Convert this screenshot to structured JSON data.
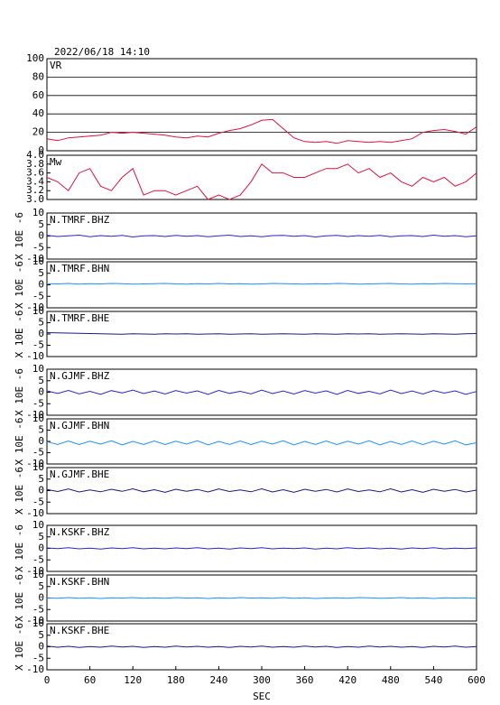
{
  "chart_data": {
    "type": "line",
    "title": "2022/06/18 14:10",
    "xlabel": "SEC",
    "x": [
      0,
      15,
      30,
      45,
      60,
      75,
      90,
      105,
      120,
      135,
      150,
      165,
      180,
      195,
      210,
      225,
      240,
      255,
      270,
      285,
      300,
      315,
      330,
      345,
      360,
      375,
      390,
      405,
      420,
      435,
      450,
      465,
      480,
      495,
      510,
      525,
      540,
      555,
      570,
      585,
      600
    ],
    "xlim": [
      0,
      600
    ],
    "xticks": [
      0,
      60,
      120,
      180,
      240,
      300,
      360,
      420,
      480,
      540,
      600
    ],
    "series": [
      {
        "name": "VR",
        "color": "#dc143c",
        "ylim": [
          0,
          100
        ],
        "yticks": [
          0,
          20,
          40,
          60,
          80,
          100
        ],
        "grid": true,
        "values": [
          13,
          11,
          14,
          15,
          16,
          17,
          20,
          19,
          20,
          19,
          18,
          17,
          15,
          14,
          16,
          15,
          19,
          22,
          24,
          28,
          33,
          34,
          24,
          14,
          10,
          9,
          10,
          8,
          11,
          10,
          9,
          10,
          9,
          11,
          13,
          20,
          22,
          23,
          21,
          18,
          26
        ]
      },
      {
        "name": "Mw",
        "color": "#dc143c",
        "ylim": [
          3,
          4
        ],
        "yticks": [
          {
            "value": 3,
            "label": "3.0"
          },
          3.2,
          3.4,
          3.6,
          3.8,
          {
            "value": 4,
            "label": "4.0"
          }
        ],
        "values": [
          3.5,
          3.4,
          3.2,
          3.6,
          3.7,
          3.3,
          3.2,
          3.5,
          3.7,
          3.1,
          3.2,
          3.2,
          3.1,
          3.2,
          3.3,
          3.0,
          3.1,
          3.0,
          3.1,
          3.4,
          3.8,
          3.6,
          3.6,
          3.5,
          3.5,
          3.6,
          3.7,
          3.7,
          3.8,
          3.6,
          3.7,
          3.5,
          3.6,
          3.4,
          3.3,
          3.5,
          3.4,
          3.5,
          3.3,
          3.4,
          3.6
        ]
      },
      {
        "name": "N.TMRF.BHZ",
        "color": "#2828c8",
        "ylim": [
          -10,
          10
        ],
        "yticks": [
          -10,
          -5,
          0,
          5,
          10
        ],
        "ylabel": "X 10E -6",
        "values": [
          0.3,
          -0.2,
          0.1,
          0.4,
          -0.3,
          0.2,
          -0.1,
          0.3,
          -0.4,
          0.1,
          0.2,
          -0.2,
          0.3,
          -0.1,
          0.2,
          -0.3,
          0.1,
          0.4,
          -0.2,
          0.1,
          -0.3,
          0.2,
          0.3,
          -0.1,
          0.2,
          -0.4,
          0.1,
          0.3,
          -0.2,
          0.2,
          -0.1,
          0.3,
          -0.3,
          0.1,
          0.2,
          -0.2,
          0.4,
          -0.1,
          0.2,
          -0.3,
          0.1
        ]
      },
      {
        "name": "N.TMRF.BHN",
        "color": "#1e90ff",
        "ylim": [
          -10,
          10
        ],
        "yticks": [
          -10,
          -5,
          0,
          5,
          10
        ],
        "ylabel": "X 10E -6",
        "values": [
          0.5,
          0.4,
          0.6,
          0.3,
          0.5,
          0.4,
          0.6,
          0.5,
          0.3,
          0.4,
          0.5,
          0.6,
          0.4,
          0.3,
          0.5,
          0.4,
          0.6,
          0.4,
          0.5,
          0.3,
          0.4,
          0.6,
          0.5,
          0.4,
          0.3,
          0.5,
          0.4,
          0.6,
          0.5,
          0.3,
          0.4,
          0.5,
          0.6,
          0.4,
          0.3,
          0.5,
          0.4,
          0.6,
          0.5,
          0.4,
          0.5
        ]
      },
      {
        "name": "N.TMRF.BHE",
        "color": "#1a1a80",
        "ylim": [
          -10,
          10
        ],
        "yticks": [
          -10,
          -5,
          0,
          5,
          10
        ],
        "ylabel": "X 10E -6",
        "values": [
          0.6,
          0.5,
          0.4,
          0.3,
          0.2,
          0.1,
          0.0,
          -0.1,
          0.1,
          0.0,
          -0.1,
          0.1,
          0.0,
          0.1,
          -0.1,
          0.0,
          0.1,
          -0.1,
          0.0,
          0.1,
          -0.1,
          0.0,
          0.1,
          0.0,
          -0.1,
          0.1,
          0.0,
          -0.1,
          0.1,
          0.0,
          0.1,
          -0.1,
          0.0,
          0.1,
          0.0,
          -0.1,
          0.1,
          0.0,
          -0.1,
          0.1,
          0.2
        ]
      },
      {
        "name": "N.GJMF.BHZ",
        "color": "#2828c8",
        "ylim": [
          -10,
          10
        ],
        "yticks": [
          -10,
          -5,
          0,
          5,
          10
        ],
        "ylabel": "X 10E -6",
        "values": [
          0.6,
          -0.5,
          0.8,
          -0.7,
          0.4,
          -0.9,
          0.7,
          -0.3,
          0.9,
          -0.6,
          0.5,
          -0.8,
          0.7,
          -0.4,
          0.6,
          -0.9,
          0.8,
          -0.5,
          0.4,
          -0.7,
          0.9,
          -0.6,
          0.5,
          -0.8,
          0.7,
          -0.4,
          0.6,
          -0.9,
          0.8,
          -0.5,
          0.4,
          -0.7,
          0.9,
          -0.6,
          0.5,
          -0.8,
          0.7,
          -0.4,
          0.6,
          -0.9,
          0.3
        ]
      },
      {
        "name": "N.GJMF.BHN",
        "color": "#1e90ff",
        "ylim": [
          -10,
          10
        ],
        "yticks": [
          -10,
          -5,
          0,
          5,
          10
        ],
        "ylabel": "X 10E -6",
        "values": [
          -0.1,
          -1.3,
          0.2,
          -1.4,
          0.1,
          -1.2,
          0.3,
          -1.5,
          0.0,
          -1.3,
          0.2,
          -1.4,
          0.1,
          -1.2,
          0.3,
          -1.5,
          0.0,
          -1.3,
          0.2,
          -1.4,
          0.1,
          -1.2,
          0.3,
          -1.5,
          0.0,
          -1.3,
          0.2,
          -1.4,
          0.1,
          -1.2,
          0.3,
          -1.5,
          0.0,
          -1.3,
          0.2,
          -1.4,
          0.1,
          -1.2,
          0.3,
          -1.5,
          -0.6
        ]
      },
      {
        "name": "N.GJMF.BHE",
        "color": "#1a1a80",
        "ylim": [
          -10,
          10
        ],
        "yticks": [
          -10,
          -5,
          0,
          5,
          10
        ],
        "ylabel": "X 10E -6",
        "values": [
          0.5,
          -0.4,
          0.7,
          -0.6,
          0.3,
          -0.5,
          0.6,
          -0.3,
          0.8,
          -0.5,
          0.4,
          -0.7,
          0.6,
          -0.3,
          0.5,
          -0.6,
          0.7,
          -0.4,
          0.3,
          -0.5,
          0.8,
          -0.6,
          0.4,
          -0.7,
          0.6,
          -0.3,
          0.5,
          -0.6,
          0.7,
          -0.4,
          0.3,
          -0.5,
          0.8,
          -0.6,
          0.4,
          -0.7,
          0.6,
          -0.3,
          0.5,
          -0.6,
          0.2
        ]
      },
      {
        "name": "N.KSKF.BHZ",
        "color": "#2828c8",
        "ylim": [
          -10,
          10
        ],
        "yticks": [
          -10,
          -5,
          0,
          5,
          10
        ],
        "ylabel": "X 10E -6",
        "values": [
          0.2,
          -0.1,
          0.3,
          -0.2,
          0.1,
          -0.3,
          0.2,
          -0.1,
          0.3,
          -0.2,
          0.1,
          -0.2,
          0.2,
          -0.1,
          0.3,
          -0.2,
          0.1,
          -0.3,
          0.2,
          -0.1,
          0.3,
          -0.2,
          0.1,
          -0.1,
          0.2,
          -0.3,
          0.1,
          -0.2,
          0.3,
          -0.1,
          0.2,
          -0.2,
          0.1,
          -0.3,
          0.2,
          -0.1,
          0.3,
          -0.2,
          0.1,
          -0.1,
          0.2
        ]
      },
      {
        "name": "N.KSKF.BHN",
        "color": "#1e90ff",
        "ylim": [
          -10,
          10
        ],
        "yticks": [
          -10,
          -5,
          0,
          5,
          10
        ],
        "ylabel": "X 10E -6",
        "values": [
          0.1,
          -0.1,
          0.2,
          -0.1,
          0.1,
          -0.2,
          0.1,
          0.0,
          0.2,
          -0.1,
          0.1,
          -0.1,
          0.2,
          0.0,
          0.1,
          -0.2,
          0.1,
          -0.1,
          0.2,
          0.0,
          0.1,
          -0.1,
          0.2,
          -0.1,
          0.1,
          -0.2,
          0.0,
          0.1,
          -0.1,
          0.2,
          0.1,
          -0.1,
          0.0,
          0.2,
          -0.1,
          0.1,
          -0.2,
          0.1,
          0.0,
          0.1,
          -0.1
        ]
      },
      {
        "name": "N.KSKF.BHE",
        "color": "#1a1a80",
        "ylim": [
          -10,
          10
        ],
        "yticks": [
          -10,
          -5,
          0,
          5,
          10
        ],
        "ylabel": "X 10E -6",
        "values": [
          0.3,
          -0.2,
          0.2,
          -0.3,
          0.1,
          -0.2,
          0.3,
          -0.1,
          0.2,
          -0.3,
          0.1,
          -0.2,
          0.3,
          -0.1,
          0.2,
          -0.2,
          0.1,
          -0.3,
          0.2,
          -0.1,
          0.3,
          -0.2,
          0.1,
          -0.2,
          0.3,
          -0.1,
          0.2,
          -0.3,
          0.1,
          -0.2,
          0.3,
          -0.1,
          0.2,
          -0.2,
          0.1,
          -0.3,
          0.2,
          -0.1,
          0.3,
          -0.2,
          0.1
        ]
      }
    ]
  }
}
